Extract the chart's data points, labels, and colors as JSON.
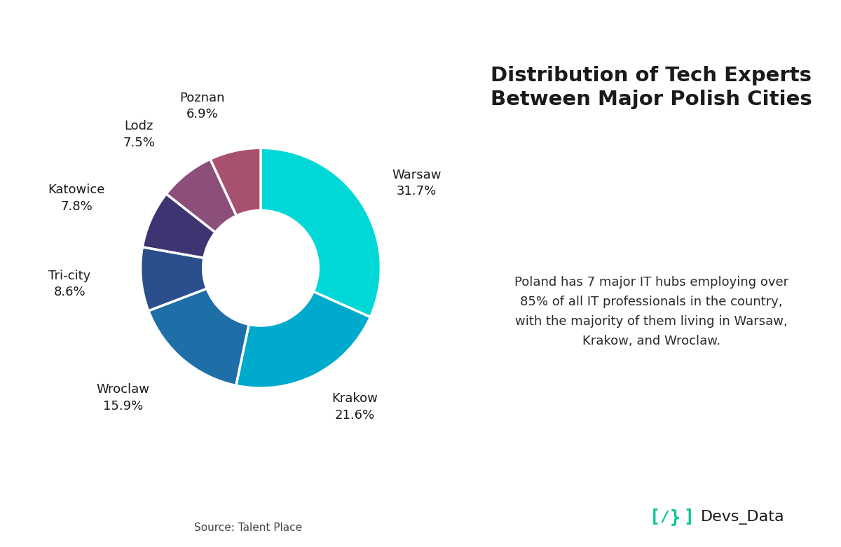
{
  "title": "Distribution of Tech Experts\nBetween Major Polish Cities",
  "cities": [
    "Warsaw",
    "Krakow",
    "Wroclaw",
    "Tri-city",
    "Katowice",
    "Lodz",
    "Poznan"
  ],
  "values": [
    31.7,
    21.6,
    15.9,
    8.6,
    7.8,
    7.5,
    6.9
  ],
  "colors": [
    "#00D8D8",
    "#00AACC",
    "#1E6FA8",
    "#2B4E8C",
    "#3D3472",
    "#8B4F7A",
    "#A85070"
  ],
  "description": "Poland has 7 major IT hubs employing over\n85% of all IT professionals in the country,\nwith the majority of them living in Warsaw,\nKrakow, and Wroclaw.",
  "source": "Source: Talent Place",
  "brand_text": "Devs_Data",
  "background_color": "#FFFFFF",
  "label_fontsize": 13,
  "title_fontsize": 21,
  "desc_fontsize": 13,
  "source_fontsize": 11,
  "text_color": "#1a1a1a",
  "brand_bracket_color": "#00C896"
}
